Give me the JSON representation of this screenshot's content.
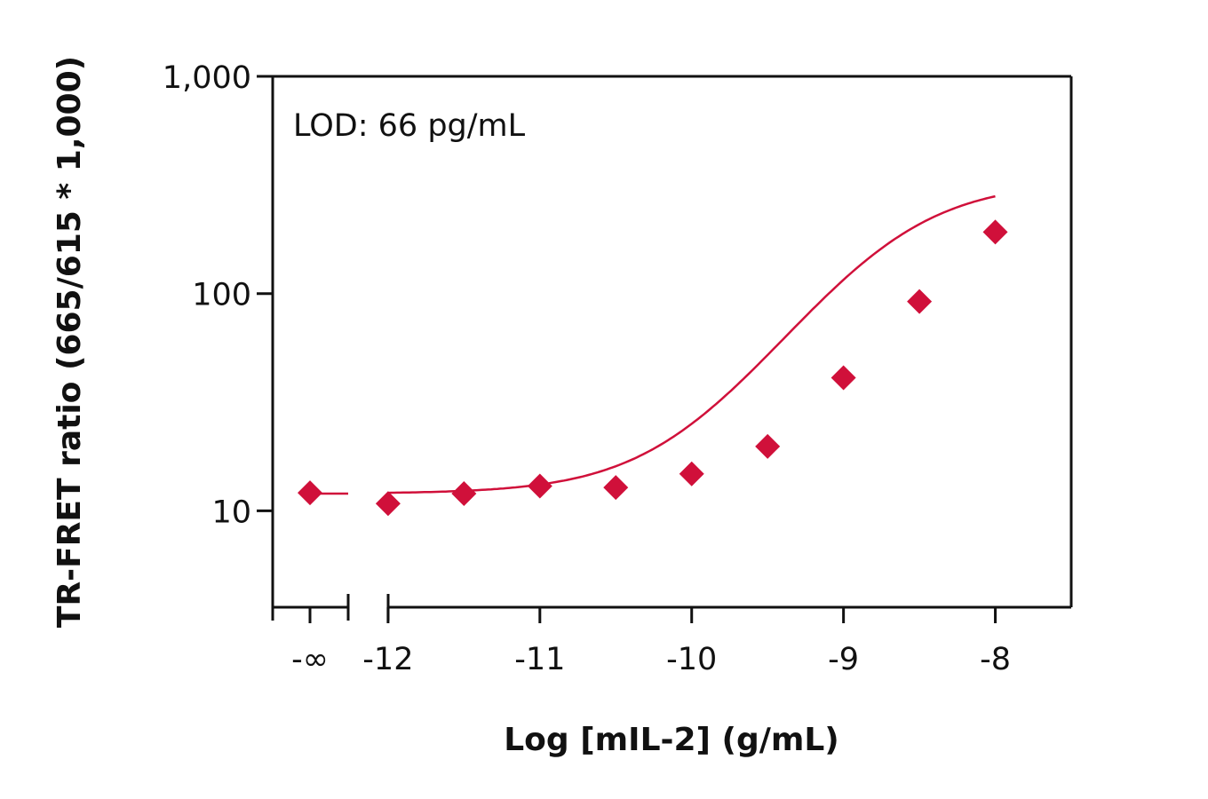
{
  "chart_data": {
    "type": "scatter",
    "title": "",
    "xlabel": "Log [mIL-2] (g/mL)",
    "ylabel": "TR-FRET ratio (665/615 * 1,000)",
    "annotation": "LOD: 66 pg/mL",
    "y_scale": "log",
    "ylim": [
      3.6,
      1000
    ],
    "xlim": [
      -12.76,
      -7.5
    ],
    "x_ticks": [
      {
        "value": -12,
        "label": "-12"
      },
      {
        "value": -11,
        "label": "-11"
      },
      {
        "value": -10,
        "label": "-10"
      },
      {
        "value": -9,
        "label": "-9"
      },
      {
        "value": -8,
        "label": "-8"
      }
    ],
    "x_break_tick": {
      "label": "-∞"
    },
    "y_ticks": [
      {
        "value": 10,
        "label": "10"
      },
      {
        "value": 100,
        "label": "100"
      },
      {
        "value": 1000,
        "label": "1,000"
      }
    ],
    "grid": false,
    "legend": "none",
    "marker_color": "#d0103a",
    "zero_point": {
      "x_label": "-∞",
      "y": 12.1
    },
    "points": [
      {
        "x": -12,
        "y": 10.8
      },
      {
        "x": -11.5,
        "y": 12.0
      },
      {
        "x": -11,
        "y": 13.0
      },
      {
        "x": -10.5,
        "y": 12.8
      },
      {
        "x": -10,
        "y": 14.8
      },
      {
        "x": -9.5,
        "y": 19.8
      },
      {
        "x": -9,
        "y": 41
      },
      {
        "x": -8.5,
        "y": 92
      },
      {
        "x": -8,
        "y": 192
      }
    ],
    "fit": {
      "model": "4PL",
      "bottom": 12,
      "top": 330,
      "log_ec50": -8.7,
      "hill": 1.05
    }
  }
}
